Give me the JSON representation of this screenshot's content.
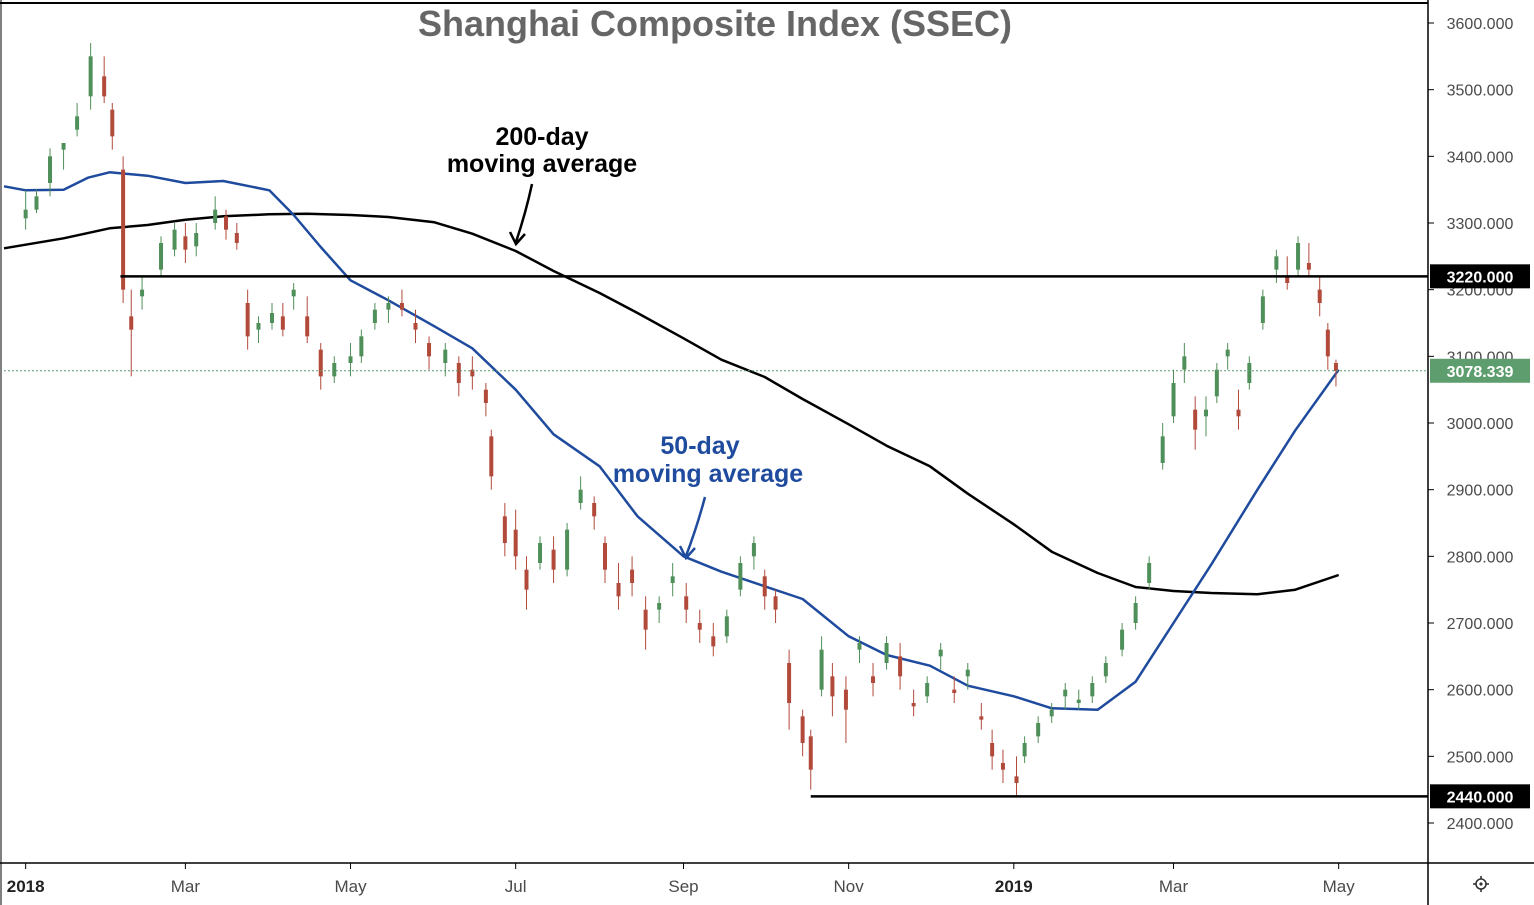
{
  "chart_data": {
    "type": "candlestick",
    "title": "Shanghai Composite Index (SSEC)",
    "y_axis": {
      "position": "right",
      "ylim": [
        2340,
        3630
      ],
      "ticks": [
        {
          "value": 3600,
          "label": "3600.000"
        },
        {
          "value": 3500,
          "label": "3500.000"
        },
        {
          "value": 3400,
          "label": "3400.000"
        },
        {
          "value": 3300,
          "label": "3300.000"
        },
        {
          "value": 3200,
          "label": "3200.000"
        },
        {
          "value": 3100,
          "label": "3100.000"
        },
        {
          "value": 3000,
          "label": "3000.000"
        },
        {
          "value": 2900,
          "label": "2900.000"
        },
        {
          "value": 2800,
          "label": "2800.000"
        },
        {
          "value": 2700,
          "label": "2700.000"
        },
        {
          "value": 2600,
          "label": "2600.000"
        },
        {
          "value": 2500,
          "label": "2500.000"
        },
        {
          "value": 2400,
          "label": "2400.000"
        }
      ]
    },
    "x_axis": {
      "start": "2017-12-24",
      "end": "2019-06-03",
      "ticks": [
        {
          "date": "2018-01-01",
          "label": "2018",
          "bold": true
        },
        {
          "date": "2018-03-01",
          "label": "Mar"
        },
        {
          "date": "2018-05-01",
          "label": "May"
        },
        {
          "date": "2018-07-01",
          "label": "Jul"
        },
        {
          "date": "2018-09-01",
          "label": "Sep"
        },
        {
          "date": "2018-11-01",
          "label": "Nov"
        },
        {
          "date": "2019-01-01",
          "label": "2019",
          "bold": true
        },
        {
          "date": "2019-03-01",
          "label": "Mar"
        },
        {
          "date": "2019-05-01",
          "label": "May"
        }
      ]
    },
    "horizontal_levels": [
      {
        "value": 3220,
        "label": "3220.000",
        "color": "#000000",
        "from_date": "2018-02-05"
      },
      {
        "value": 2440,
        "label": "2440.000",
        "color": "#000000",
        "from_date": "2018-10-18"
      }
    ],
    "last_price": {
      "value": 3078.339,
      "label": "3078.339",
      "color": "#5e9e6e"
    },
    "colors": {
      "up": "#4f8f59",
      "down": "#b14a3a",
      "ma50": "#1f4b9e",
      "ma200": "#000000"
    },
    "series": [
      {
        "name": "200-day moving average",
        "color": "#000000",
        "points": [
          [
            "2017-12-24",
            3262
          ],
          [
            "2018-01-15",
            3277
          ],
          [
            "2018-02-01",
            3292
          ],
          [
            "2018-02-15",
            3297
          ],
          [
            "2018-03-01",
            3305
          ],
          [
            "2018-03-15",
            3310
          ],
          [
            "2018-04-01",
            3313
          ],
          [
            "2018-04-15",
            3314
          ],
          [
            "2018-05-01",
            3312
          ],
          [
            "2018-05-15",
            3309
          ],
          [
            "2018-06-01",
            3301
          ],
          [
            "2018-06-15",
            3284
          ],
          [
            "2018-07-01",
            3258
          ],
          [
            "2018-07-15",
            3228
          ],
          [
            "2018-08-01",
            3195
          ],
          [
            "2018-08-15",
            3165
          ],
          [
            "2018-09-01",
            3127
          ],
          [
            "2018-09-15",
            3095
          ],
          [
            "2018-10-01",
            3069
          ],
          [
            "2018-10-15",
            3036
          ],
          [
            "2018-11-01",
            2998
          ],
          [
            "2018-11-15",
            2966
          ],
          [
            "2018-12-01",
            2935
          ],
          [
            "2018-12-15",
            2894
          ],
          [
            "2019-01-01",
            2848
          ],
          [
            "2019-01-15",
            2807
          ],
          [
            "2019-02-01",
            2775
          ],
          [
            "2019-02-15",
            2754
          ],
          [
            "2019-03-01",
            2748
          ],
          [
            "2019-03-15",
            2745
          ],
          [
            "2019-04-01",
            2743
          ],
          [
            "2019-04-15",
            2750
          ],
          [
            "2019-05-01",
            2772
          ]
        ]
      },
      {
        "name": "50-day moving average",
        "color": "#1f4b9e",
        "points": [
          [
            "2017-12-24",
            3355
          ],
          [
            "2018-01-01",
            3349
          ],
          [
            "2018-01-15",
            3350
          ],
          [
            "2018-01-24",
            3368
          ],
          [
            "2018-02-01",
            3376
          ],
          [
            "2018-02-15",
            3371
          ],
          [
            "2018-03-01",
            3360
          ],
          [
            "2018-03-15",
            3363
          ],
          [
            "2018-04-01",
            3349
          ],
          [
            "2018-04-10",
            3312
          ],
          [
            "2018-04-20",
            3264
          ],
          [
            "2018-05-01",
            3214
          ],
          [
            "2018-05-15",
            3184
          ],
          [
            "2018-06-01",
            3145
          ],
          [
            "2018-06-15",
            3112
          ],
          [
            "2018-07-01",
            3050
          ],
          [
            "2018-07-15",
            2983
          ],
          [
            "2018-08-01",
            2935
          ],
          [
            "2018-08-15",
            2860
          ],
          [
            "2018-09-01",
            2800
          ],
          [
            "2018-09-15",
            2777
          ],
          [
            "2018-10-01",
            2755
          ],
          [
            "2018-10-15",
            2736
          ],
          [
            "2018-11-01",
            2680
          ],
          [
            "2018-11-15",
            2652
          ],
          [
            "2018-12-01",
            2636
          ],
          [
            "2018-12-15",
            2606
          ],
          [
            "2019-01-01",
            2590
          ],
          [
            "2019-01-15",
            2572
          ],
          [
            "2019-02-01",
            2570
          ],
          [
            "2019-02-15",
            2612
          ],
          [
            "2019-03-01",
            2700
          ],
          [
            "2019-03-15",
            2788
          ],
          [
            "2019-04-01",
            2900
          ],
          [
            "2019-04-15",
            2989
          ],
          [
            "2019-05-01",
            3080
          ]
        ]
      }
    ],
    "candles": [
      [
        "2018-01-01",
        3307,
        3349,
        3290,
        3320
      ],
      [
        "2018-01-05",
        3320,
        3350,
        3315,
        3340
      ],
      [
        "2018-01-10",
        3360,
        3412,
        3340,
        3400
      ],
      [
        "2018-01-15",
        3410,
        3420,
        3380,
        3420
      ],
      [
        "2018-01-20",
        3440,
        3480,
        3430,
        3460
      ],
      [
        "2018-01-25",
        3490,
        3570,
        3470,
        3550
      ],
      [
        "2018-01-30",
        3520,
        3550,
        3480,
        3490
      ],
      [
        "2018-02-02",
        3470,
        3480,
        3410,
        3430
      ],
      [
        "2018-02-06",
        3380,
        3400,
        3180,
        3200
      ],
      [
        "2018-02-09",
        3160,
        3200,
        3070,
        3140
      ],
      [
        "2018-02-13",
        3190,
        3220,
        3170,
        3200
      ],
      [
        "2018-02-20",
        3230,
        3280,
        3220,
        3270
      ],
      [
        "2018-02-25",
        3260,
        3300,
        3250,
        3290
      ],
      [
        "2018-03-01",
        3280,
        3300,
        3240,
        3260
      ],
      [
        "2018-03-05",
        3265,
        3300,
        3250,
        3285
      ],
      [
        "2018-03-12",
        3300,
        3340,
        3290,
        3320
      ],
      [
        "2018-03-16",
        3310,
        3320,
        3275,
        3290
      ],
      [
        "2018-03-20",
        3285,
        3300,
        3260,
        3270
      ],
      [
        "2018-03-24",
        3180,
        3200,
        3110,
        3130
      ],
      [
        "2018-03-28",
        3140,
        3160,
        3120,
        3150
      ],
      [
        "2018-04-02",
        3150,
        3180,
        3140,
        3165
      ],
      [
        "2018-04-06",
        3160,
        3180,
        3130,
        3140
      ],
      [
        "2018-04-10",
        3190,
        3210,
        3170,
        3200
      ],
      [
        "2018-04-15",
        3160,
        3190,
        3120,
        3130
      ],
      [
        "2018-04-20",
        3110,
        3120,
        3050,
        3070
      ],
      [
        "2018-04-25",
        3070,
        3100,
        3060,
        3090
      ],
      [
        "2018-05-01",
        3090,
        3120,
        3070,
        3100
      ],
      [
        "2018-05-05",
        3100,
        3140,
        3090,
        3130
      ],
      [
        "2018-05-10",
        3150,
        3180,
        3140,
        3170
      ],
      [
        "2018-05-15",
        3170,
        3190,
        3150,
        3180
      ],
      [
        "2018-05-20",
        3180,
        3200,
        3160,
        3170
      ],
      [
        "2018-05-25",
        3150,
        3170,
        3120,
        3140
      ],
      [
        "2018-05-30",
        3120,
        3130,
        3080,
        3100
      ],
      [
        "2018-06-05",
        3090,
        3120,
        3070,
        3110
      ],
      [
        "2018-06-10",
        3090,
        3100,
        3040,
        3060
      ],
      [
        "2018-06-15",
        3080,
        3100,
        3050,
        3070
      ],
      [
        "2018-06-20",
        3050,
        3060,
        3010,
        3030
      ],
      [
        "2018-06-22",
        2980,
        2990,
        2900,
        2920
      ],
      [
        "2018-06-27",
        2860,
        2880,
        2800,
        2820
      ],
      [
        "2018-07-01",
        2840,
        2870,
        2780,
        2800
      ],
      [
        "2018-07-05",
        2780,
        2800,
        2720,
        2750
      ],
      [
        "2018-07-10",
        2790,
        2830,
        2780,
        2820
      ],
      [
        "2018-07-15",
        2810,
        2830,
        2760,
        2780
      ],
      [
        "2018-07-20",
        2780,
        2850,
        2770,
        2840
      ],
      [
        "2018-07-25",
        2880,
        2920,
        2870,
        2900
      ],
      [
        "2018-07-30",
        2880,
        2890,
        2840,
        2860
      ],
      [
        "2018-08-03",
        2820,
        2830,
        2760,
        2780
      ],
      [
        "2018-08-08",
        2760,
        2790,
        2720,
        2740
      ],
      [
        "2018-08-13",
        2780,
        2800,
        2740,
        2760
      ],
      [
        "2018-08-18",
        2720,
        2740,
        2660,
        2690
      ],
      [
        "2018-08-23",
        2720,
        2740,
        2700,
        2730
      ],
      [
        "2018-08-28",
        2760,
        2790,
        2740,
        2770
      ],
      [
        "2018-09-02",
        2740,
        2760,
        2700,
        2720
      ],
      [
        "2018-09-07",
        2700,
        2720,
        2670,
        2690
      ],
      [
        "2018-09-12",
        2680,
        2700,
        2650,
        2665
      ],
      [
        "2018-09-17",
        2680,
        2720,
        2670,
        2710
      ],
      [
        "2018-09-22",
        2750,
        2800,
        2740,
        2790
      ],
      [
        "2018-09-27",
        2800,
        2830,
        2780,
        2820
      ],
      [
        "2018-10-01",
        2770,
        2780,
        2720,
        2740
      ],
      [
        "2018-10-05",
        2740,
        2750,
        2700,
        2720
      ],
      [
        "2018-10-10",
        2640,
        2660,
        2540,
        2580
      ],
      [
        "2018-10-15",
        2560,
        2570,
        2500,
        2520
      ],
      [
        "2018-10-18",
        2530,
        2540,
        2450,
        2480
      ],
      [
        "2018-10-22",
        2600,
        2680,
        2590,
        2660
      ],
      [
        "2018-10-26",
        2620,
        2640,
        2560,
        2590
      ],
      [
        "2018-10-31",
        2600,
        2620,
        2520,
        2570
      ],
      [
        "2018-11-05",
        2660,
        2680,
        2640,
        2670
      ],
      [
        "2018-11-10",
        2620,
        2640,
        2590,
        2610
      ],
      [
        "2018-11-15",
        2640,
        2680,
        2630,
        2670
      ],
      [
        "2018-11-20",
        2650,
        2670,
        2600,
        2620
      ],
      [
        "2018-11-25",
        2580,
        2600,
        2560,
        2575
      ],
      [
        "2018-11-30",
        2590,
        2620,
        2580,
        2610
      ],
      [
        "2018-12-05",
        2650,
        2670,
        2630,
        2660
      ],
      [
        "2018-12-10",
        2600,
        2620,
        2580,
        2595
      ],
      [
        "2018-12-15",
        2620,
        2640,
        2600,
        2630
      ],
      [
        "2018-12-20",
        2560,
        2580,
        2540,
        2555
      ],
      [
        "2018-12-24",
        2520,
        2540,
        2480,
        2500
      ],
      [
        "2018-12-28",
        2490,
        2510,
        2460,
        2480
      ],
      [
        "2019-01-02",
        2470,
        2500,
        2440,
        2460
      ],
      [
        "2019-01-05",
        2500,
        2530,
        2490,
        2520
      ],
      [
        "2019-01-10",
        2530,
        2560,
        2520,
        2550
      ],
      [
        "2019-01-15",
        2560,
        2580,
        2550,
        2570
      ],
      [
        "2019-01-20",
        2590,
        2610,
        2570,
        2600
      ],
      [
        "2019-01-25",
        2580,
        2600,
        2570,
        2585
      ],
      [
        "2019-01-30",
        2590,
        2620,
        2580,
        2610
      ],
      [
        "2019-02-04",
        2620,
        2650,
        2610,
        2640
      ],
      [
        "2019-02-10",
        2660,
        2700,
        2650,
        2690
      ],
      [
        "2019-02-15",
        2700,
        2740,
        2690,
        2730
      ],
      [
        "2019-02-20",
        2760,
        2800,
        2750,
        2790
      ],
      [
        "2019-02-25",
        2940,
        3000,
        2930,
        2980
      ],
      [
        "2019-03-01",
        3010,
        3080,
        3000,
        3060
      ],
      [
        "2019-03-05",
        3080,
        3120,
        3060,
        3100
      ],
      [
        "2019-03-09",
        3020,
        3040,
        2960,
        2990
      ],
      [
        "2019-03-13",
        3010,
        3040,
        2980,
        3020
      ],
      [
        "2019-03-17",
        3040,
        3090,
        3030,
        3080
      ],
      [
        "2019-03-21",
        3100,
        3120,
        3080,
        3110
      ],
      [
        "2019-03-25",
        3020,
        3050,
        2990,
        3010
      ],
      [
        "2019-03-29",
        3060,
        3100,
        3050,
        3090
      ],
      [
        "2019-04-03",
        3150,
        3200,
        3140,
        3190
      ],
      [
        "2019-04-08",
        3230,
        3260,
        3210,
        3250
      ],
      [
        "2019-04-12",
        3220,
        3250,
        3200,
        3210
      ],
      [
        "2019-04-16",
        3230,
        3280,
        3220,
        3270
      ],
      [
        "2019-04-20",
        3240,
        3270,
        3220,
        3230
      ],
      [
        "2019-04-24",
        3200,
        3220,
        3160,
        3180
      ],
      [
        "2019-04-27",
        3140,
        3150,
        3080,
        3100
      ],
      [
        "2019-04-30",
        3090,
        3095,
        3055,
        3078
      ]
    ]
  },
  "annotations": {
    "ma200_label": [
      "200-day",
      "moving average"
    ],
    "ma50_label": [
      "50-day",
      "moving average"
    ]
  },
  "settings_icon": "gear-icon"
}
